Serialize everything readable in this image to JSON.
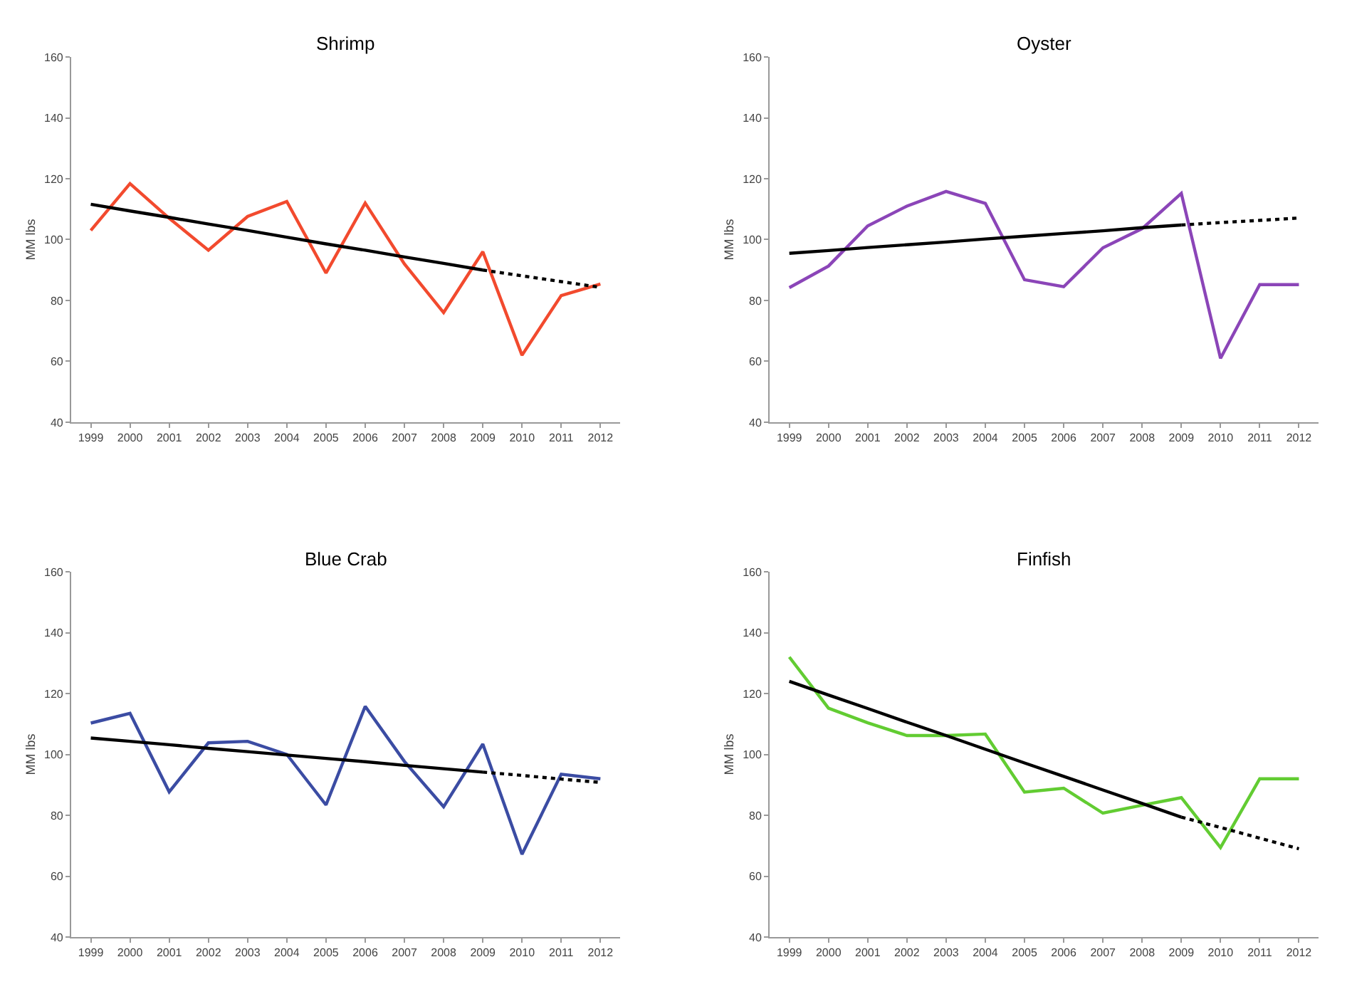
{
  "chart_data": [
    {
      "type": "line",
      "title": "Shrimp",
      "ylabel": "MM lbs",
      "categories": [
        "1999",
        "2000",
        "2001",
        "2002",
        "2003",
        "2004",
        "2005",
        "2006",
        "2007",
        "2008",
        "2009",
        "2010",
        "2011",
        "2012"
      ],
      "ylim": [
        40,
        160
      ],
      "yticks": [
        40,
        60,
        80,
        100,
        120,
        140,
        160
      ],
      "marker": "none",
      "series": [
        {
          "color": "#f24a2e",
          "line_style": "solid",
          "values": [
            103,
            118.4,
            107,
            96.5,
            107.6,
            112.5,
            89,
            112,
            92,
            76,
            96,
            62,
            81.6,
            85.4
          ]
        },
        {
          "type": "line",
          "color": "#000000",
          "line_style": "solid",
          "values": [
            111.6,
            109.4,
            107.3,
            105.1,
            103.0,
            100.8,
            98.6,
            96.5,
            94.3,
            92.2,
            90.0,
            null,
            null,
            null
          ]
        },
        {
          "type": "line",
          "color": "#000000",
          "line_style": "dotted",
          "values": [
            null,
            null,
            null,
            null,
            null,
            null,
            null,
            null,
            null,
            null,
            90.0,
            88.1,
            86.2,
            84.3
          ]
        }
      ]
    },
    {
      "type": "line",
      "title": "Oyster",
      "ylabel": "MM lbs",
      "categories": [
        "1999",
        "2000",
        "2001",
        "2002",
        "2003",
        "2004",
        "2005",
        "2006",
        "2007",
        "2008",
        "2009",
        "2010",
        "2011",
        "2012"
      ],
      "ylim": [
        40,
        160
      ],
      "yticks": [
        40,
        60,
        80,
        100,
        120,
        140,
        160
      ],
      "marker": "none",
      "series": [
        {
          "color": "#8b45b8",
          "line_style": "solid",
          "values": [
            84.2,
            91.3,
            104.5,
            111,
            115.8,
            111.9,
            86.8,
            84.5,
            97.3,
            103.6,
            115.2,
            61,
            85.2,
            85.2
          ]
        },
        {
          "type": "line",
          "color": "#000000",
          "line_style": "solid",
          "values": [
            95.5,
            96.4,
            97.4,
            98.3,
            99.2,
            100.2,
            101.1,
            102.0,
            102.9,
            103.9,
            104.8,
            null,
            null,
            null
          ]
        },
        {
          "type": "line",
          "color": "#000000",
          "line_style": "dotted",
          "values": [
            null,
            null,
            null,
            null,
            null,
            null,
            null,
            null,
            null,
            null,
            104.8,
            105.6,
            106.3,
            107.1
          ]
        }
      ]
    },
    {
      "type": "line",
      "title": "Blue Crab",
      "ylabel": "MM lbs",
      "categories": [
        "1999",
        "2000",
        "2001",
        "2002",
        "2003",
        "2004",
        "2005",
        "2006",
        "2007",
        "2008",
        "2009",
        "2010",
        "2011",
        "2012"
      ],
      "ylim": [
        40,
        160
      ],
      "yticks": [
        40,
        60,
        80,
        100,
        120,
        140,
        160
      ],
      "marker": "none",
      "series": [
        {
          "color": "#3b4ca3",
          "line_style": "solid",
          "values": [
            110.3,
            113.5,
            87.7,
            103.8,
            104.3,
            100,
            83.4,
            115.8,
            97.7,
            82.8,
            103.4,
            67.2,
            93.5,
            92
          ]
        },
        {
          "type": "line",
          "color": "#000000",
          "line_style": "solid",
          "values": [
            105.4,
            104.3,
            103.2,
            102.0,
            100.9,
            99.8,
            98.7,
            97.6,
            96.4,
            95.3,
            94.2,
            null,
            null,
            null
          ]
        },
        {
          "type": "line",
          "color": "#000000",
          "line_style": "dotted",
          "values": [
            null,
            null,
            null,
            null,
            null,
            null,
            null,
            null,
            null,
            null,
            94.2,
            93.1,
            91.9,
            90.8
          ]
        }
      ]
    },
    {
      "type": "line",
      "title": "Finfish",
      "ylabel": "MM lbs",
      "categories": [
        "1999",
        "2000",
        "2001",
        "2002",
        "2003",
        "2004",
        "2005",
        "2006",
        "2007",
        "2008",
        "2009",
        "2010",
        "2011",
        "2012"
      ],
      "ylim": [
        40,
        160
      ],
      "yticks": [
        40,
        60,
        80,
        100,
        120,
        140,
        160
      ],
      "marker": "none",
      "series": [
        {
          "color": "#62cc32",
          "line_style": "solid",
          "values": [
            132,
            115.2,
            110.4,
            106.2,
            106.2,
            106.7,
            87.6,
            88.9,
            80.7,
            83.3,
            85.8,
            69.4,
            92,
            92
          ]
        },
        {
          "type": "line",
          "color": "#000000",
          "line_style": "solid",
          "values": [
            124.0,
            119.5,
            115.1,
            110.6,
            106.2,
            101.7,
            97.2,
            92.8,
            88.3,
            83.9,
            79.4,
            null,
            null,
            null
          ]
        },
        {
          "type": "line",
          "color": "#000000",
          "line_style": "dotted",
          "values": [
            null,
            null,
            null,
            null,
            null,
            null,
            null,
            null,
            null,
            null,
            79.4,
            76.0,
            72.5,
            69.0
          ]
        }
      ]
    }
  ]
}
